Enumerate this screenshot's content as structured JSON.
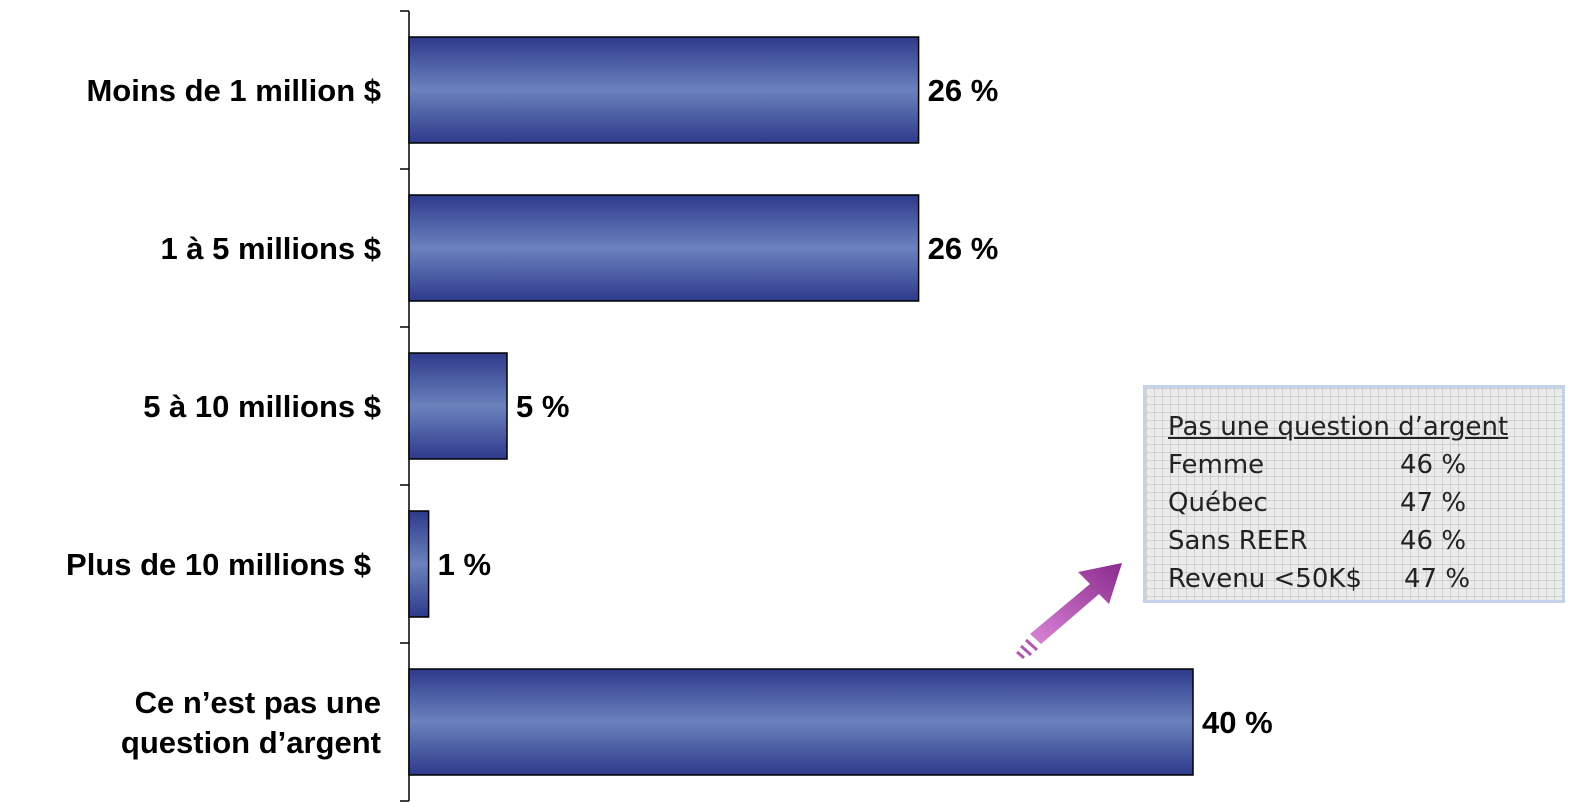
{
  "chart_data": {
    "type": "bar",
    "orientation": "horizontal",
    "categories": [
      "Moins de 1 million $",
      "1 à 5 millions $",
      "5 à 10 millions $",
      "Plus de 10 millions $",
      "Ce n’est pas une question d’argent"
    ],
    "category_lines": [
      [
        "Moins de 1 million $"
      ],
      [
        "1 à 5 millions $"
      ],
      [
        "5 à 10 millions $"
      ],
      [
        "Plus de 10 millions $"
      ],
      [
        "Ce n’est pas une",
        "question d’argent"
      ]
    ],
    "values": [
      26,
      26,
      5,
      1,
      40
    ],
    "value_labels": [
      "26 %",
      "26 %",
      "5 %",
      "1 %",
      "40 %"
    ],
    "unit": "%",
    "xlim": [
      0,
      45
    ],
    "bar_color": "#2e3a8c",
    "bar_highlight": "#6b82bd",
    "grid": false,
    "legend": "none"
  },
  "callout": {
    "title": "Pas une question d’argent",
    "rows": [
      {
        "label": "Femme",
        "value": "46 %"
      },
      {
        "label": "Québec",
        "value": "47 %"
      },
      {
        "label": "Sans REER",
        "value": "46 %"
      },
      {
        "label": "Revenu <50K$",
        "value": "47 %"
      }
    ],
    "arrow_color": "#9a3a9e"
  }
}
